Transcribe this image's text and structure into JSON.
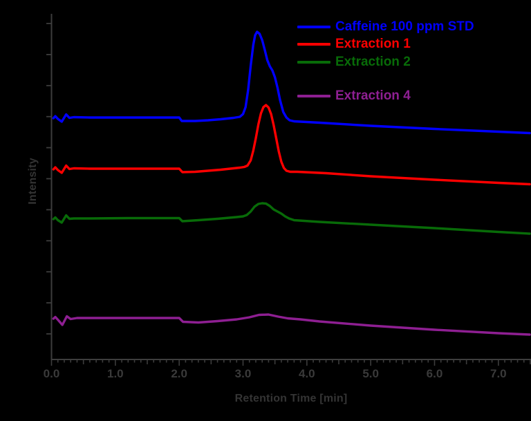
{
  "figure": {
    "background_color": "#000000",
    "axis_line_color": "#3d3d3d",
    "text_color": "#343434"
  },
  "chart_data": {
    "type": "line",
    "title": "",
    "xlabel": "Retention Time [min]",
    "ylabel": "Intensity",
    "x_range": [
      0,
      7.5
    ],
    "x_tick_labels": [
      "0.0",
      "1.0",
      "2.0",
      "3.0",
      "4.0",
      "5.0",
      "6.0",
      "7.0"
    ],
    "x_major_tick_interval": 1.0,
    "x_medium_tick_interval": 0.5,
    "x_minor_tick_interval": 0.1,
    "y_tick_count": 11,
    "y_tick_labels_shown": false,
    "y_unit": "arbitrary units (percent of plot height)",
    "grid": false,
    "legend_position": "top-right inside",
    "series": [
      {
        "name": "Caffeine 100 ppm STD",
        "color": "#0000fe",
        "peak_retention_time_min": 3.22,
        "points": [
          [
            0.03,
            69.8
          ],
          [
            0.06,
            70.4
          ],
          [
            0.1,
            69.6
          ],
          [
            0.16,
            68.8
          ],
          [
            0.23,
            70.9
          ],
          [
            0.28,
            69.9
          ],
          [
            0.35,
            70.1
          ],
          [
            0.6,
            70.0
          ],
          [
            1.2,
            70.0
          ],
          [
            2.0,
            70.0
          ],
          [
            2.04,
            69.0
          ],
          [
            2.25,
            69.0
          ],
          [
            2.45,
            69.2
          ],
          [
            2.65,
            69.5
          ],
          [
            2.85,
            69.9
          ],
          [
            2.95,
            70.2
          ],
          [
            3.0,
            71.0
          ],
          [
            3.04,
            73.0
          ],
          [
            3.08,
            78.0
          ],
          [
            3.12,
            85.0
          ],
          [
            3.16,
            91.0
          ],
          [
            3.19,
            93.8
          ],
          [
            3.22,
            94.8
          ],
          [
            3.26,
            94.2
          ],
          [
            3.3,
            92.4
          ],
          [
            3.34,
            89.6
          ],
          [
            3.38,
            86.6
          ],
          [
            3.42,
            84.8
          ],
          [
            3.46,
            83.6
          ],
          [
            3.5,
            81.6
          ],
          [
            3.54,
            78.6
          ],
          [
            3.58,
            75.0
          ],
          [
            3.63,
            71.6
          ],
          [
            3.68,
            70.0
          ],
          [
            3.73,
            69.2
          ],
          [
            3.8,
            68.9
          ],
          [
            4.2,
            68.5
          ],
          [
            5.0,
            67.6
          ],
          [
            6.0,
            66.7
          ],
          [
            7.0,
            65.9
          ],
          [
            7.49,
            65.5
          ]
        ]
      },
      {
        "name": "Extraction 1",
        "color": "#fe0000",
        "peak_retention_time_min": 3.36,
        "points": [
          [
            0.03,
            55.0
          ],
          [
            0.06,
            55.6
          ],
          [
            0.1,
            54.8
          ],
          [
            0.16,
            54.0
          ],
          [
            0.23,
            56.1
          ],
          [
            0.28,
            55.1
          ],
          [
            0.35,
            55.3
          ],
          [
            0.6,
            55.2
          ],
          [
            1.2,
            55.2
          ],
          [
            2.0,
            55.2
          ],
          [
            2.05,
            54.2
          ],
          [
            2.25,
            54.3
          ],
          [
            2.45,
            54.6
          ],
          [
            2.65,
            54.9
          ],
          [
            2.85,
            55.3
          ],
          [
            2.95,
            55.5
          ],
          [
            3.02,
            55.7
          ],
          [
            3.07,
            56.1
          ],
          [
            3.12,
            57.6
          ],
          [
            3.16,
            60.4
          ],
          [
            3.2,
            64.0
          ],
          [
            3.24,
            68.0
          ],
          [
            3.28,
            71.2
          ],
          [
            3.32,
            73.0
          ],
          [
            3.36,
            73.6
          ],
          [
            3.4,
            72.9
          ],
          [
            3.44,
            71.0
          ],
          [
            3.48,
            67.8
          ],
          [
            3.52,
            64.0
          ],
          [
            3.56,
            60.2
          ],
          [
            3.6,
            57.2
          ],
          [
            3.64,
            55.4
          ],
          [
            3.68,
            54.6
          ],
          [
            3.74,
            54.3
          ],
          [
            3.85,
            54.3
          ],
          [
            4.3,
            53.9
          ],
          [
            5.0,
            53.0
          ],
          [
            6.0,
            52.0
          ],
          [
            7.0,
            51.1
          ],
          [
            7.49,
            50.7
          ]
        ]
      },
      {
        "name": "Extraction 2",
        "color": "#086b08",
        "peak_retention_time_min": 3.33,
        "points": [
          [
            0.03,
            40.6
          ],
          [
            0.06,
            41.1
          ],
          [
            0.1,
            40.3
          ],
          [
            0.16,
            39.6
          ],
          [
            0.23,
            41.7
          ],
          [
            0.28,
            40.7
          ],
          [
            0.35,
            40.8
          ],
          [
            0.6,
            40.8
          ],
          [
            1.2,
            40.9
          ],
          [
            2.0,
            40.9
          ],
          [
            2.05,
            40.0
          ],
          [
            2.3,
            40.3
          ],
          [
            2.6,
            40.7
          ],
          [
            2.9,
            41.2
          ],
          [
            3.0,
            41.4
          ],
          [
            3.06,
            41.8
          ],
          [
            3.12,
            42.8
          ],
          [
            3.18,
            44.2
          ],
          [
            3.24,
            45.0
          ],
          [
            3.3,
            45.2
          ],
          [
            3.36,
            45.1
          ],
          [
            3.42,
            44.4
          ],
          [
            3.48,
            43.4
          ],
          [
            3.54,
            42.8
          ],
          [
            3.6,
            42.2
          ],
          [
            3.66,
            41.4
          ],
          [
            3.72,
            40.8
          ],
          [
            3.8,
            40.3
          ],
          [
            4.2,
            39.8
          ],
          [
            5.0,
            39.0
          ],
          [
            6.0,
            38.0
          ],
          [
            7.0,
            36.9
          ],
          [
            7.49,
            36.4
          ]
        ]
      },
      {
        "name": "Extraction 4",
        "color": "#8e1f92",
        "peak_retention_time_min": 3.35,
        "points": [
          [
            0.03,
            11.8
          ],
          [
            0.06,
            12.3
          ],
          [
            0.1,
            11.5
          ],
          [
            0.17,
            10.0
          ],
          [
            0.24,
            12.5
          ],
          [
            0.3,
            11.7
          ],
          [
            0.4,
            12.0
          ],
          [
            0.8,
            12.0
          ],
          [
            1.5,
            12.0
          ],
          [
            2.0,
            12.0
          ],
          [
            2.06,
            10.9
          ],
          [
            2.3,
            10.7
          ],
          [
            2.6,
            11.1
          ],
          [
            2.9,
            11.6
          ],
          [
            3.1,
            12.2
          ],
          [
            3.25,
            12.9
          ],
          [
            3.4,
            13.0
          ],
          [
            3.55,
            12.4
          ],
          [
            3.7,
            11.9
          ],
          [
            3.9,
            11.6
          ],
          [
            4.2,
            11.0
          ],
          [
            5.0,
            9.8
          ],
          [
            6.0,
            8.6
          ],
          [
            7.0,
            7.6
          ],
          [
            7.49,
            7.2
          ]
        ]
      }
    ]
  }
}
